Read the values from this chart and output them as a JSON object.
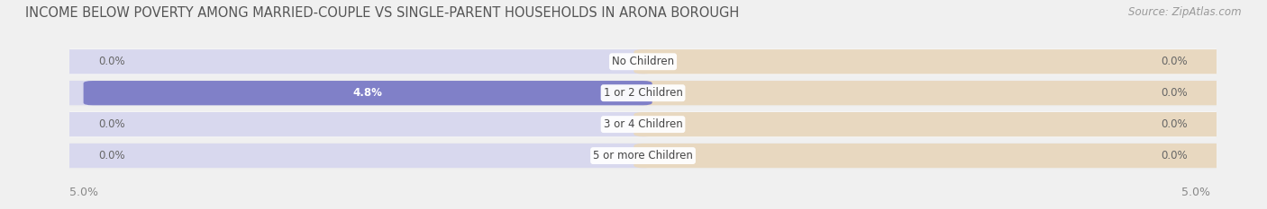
{
  "title": "INCOME BELOW POVERTY AMONG MARRIED-COUPLE VS SINGLE-PARENT HOUSEHOLDS IN ARONA BOROUGH",
  "source": "Source: ZipAtlas.com",
  "categories": [
    "No Children",
    "1 or 2 Children",
    "3 or 4 Children",
    "5 or more Children"
  ],
  "married_values": [
    0.0,
    4.8,
    0.0,
    0.0
  ],
  "single_values": [
    0.0,
    0.0,
    0.0,
    0.0
  ],
  "married_color": "#8080c8",
  "single_color": "#e8b878",
  "row_bg_odd": "#eeeeee",
  "row_bg_even": "#f5f5f5",
  "background_color": "#f0f0f0",
  "xlim": 5.0,
  "title_fontsize": 10.5,
  "source_fontsize": 8.5,
  "label_fontsize": 8.5,
  "tick_fontsize": 9,
  "category_fontsize": 8.5,
  "value_label_color_inside": "#ffffff",
  "value_label_color_outside": "#666666"
}
